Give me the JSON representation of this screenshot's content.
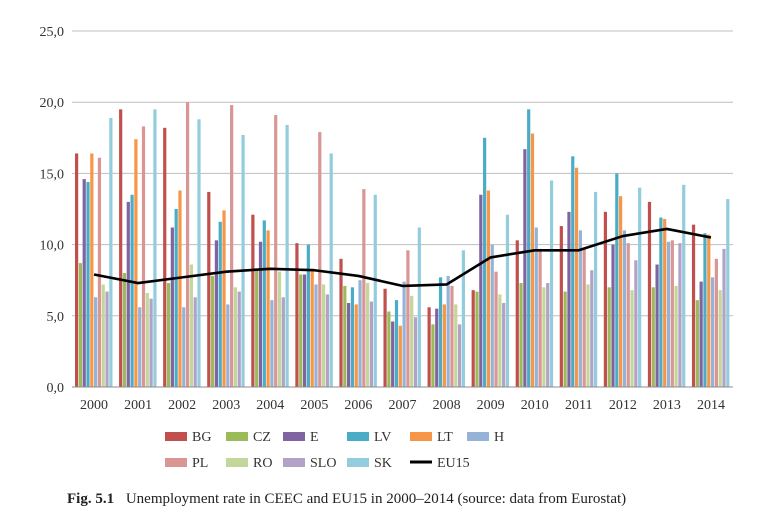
{
  "chart_data": {
    "type": "bar",
    "categories": [
      "2000",
      "2001",
      "2002",
      "2003",
      "2004",
      "2005",
      "2006",
      "2007",
      "2008",
      "2009",
      "2010",
      "2011",
      "2012",
      "2013",
      "2014"
    ],
    "series": [
      {
        "name": "BG",
        "color": "#c0504d",
        "values": [
          16.4,
          19.5,
          18.2,
          13.7,
          12.1,
          10.1,
          9.0,
          6.9,
          5.6,
          6.8,
          10.3,
          11.3,
          12.3,
          13.0,
          11.4
        ]
      },
      {
        "name": "CZ",
        "color": "#9bbb59",
        "values": [
          8.7,
          8.0,
          7.3,
          7.8,
          8.3,
          7.9,
          7.1,
          5.3,
          4.4,
          6.7,
          7.3,
          6.7,
          7.0,
          7.0,
          6.1
        ]
      },
      {
        "name": "E",
        "color": "#8064a2",
        "values": [
          14.6,
          13.0,
          11.2,
          10.3,
          10.2,
          7.9,
          5.9,
          4.6,
          5.5,
          13.5,
          16.7,
          12.3,
          10.0,
          8.6,
          7.4
        ]
      },
      {
        "name": "LV",
        "color": "#4bacc6",
        "values": [
          14.4,
          13.5,
          12.5,
          11.6,
          11.7,
          10.0,
          7.0,
          6.1,
          7.7,
          17.5,
          19.5,
          16.2,
          15.0,
          11.9,
          10.8
        ]
      },
      {
        "name": "LT",
        "color": "#f79646",
        "values": [
          16.4,
          17.4,
          13.8,
          12.4,
          11.0,
          8.3,
          5.8,
          4.3,
          5.8,
          13.8,
          17.8,
          15.4,
          13.4,
          11.8,
          10.7
        ]
      },
      {
        "name": "H",
        "color": "#95b3d7",
        "values": [
          6.3,
          5.6,
          5.6,
          5.8,
          6.1,
          7.2,
          7.5,
          7.4,
          7.8,
          10.0,
          11.2,
          11.0,
          11.0,
          10.2,
          7.7
        ]
      },
      {
        "name": "PL",
        "color": "#d99694",
        "values": [
          16.1,
          18.3,
          20.0,
          19.8,
          19.1,
          17.9,
          13.9,
          9.6,
          7.1,
          8.1,
          9.7,
          9.7,
          10.1,
          10.3,
          9.0
        ]
      },
      {
        "name": "RO",
        "color": "#c3d69b",
        "values": [
          7.2,
          6.6,
          8.6,
          7.0,
          8.1,
          7.2,
          7.3,
          6.4,
          5.8,
          6.5,
          7.0,
          7.2,
          6.8,
          7.1,
          6.8
        ]
      },
      {
        "name": "SLO",
        "color": "#b3a2c7",
        "values": [
          6.7,
          6.2,
          6.3,
          6.7,
          6.3,
          6.5,
          6.0,
          4.9,
          4.4,
          5.9,
          7.3,
          8.2,
          8.9,
          10.1,
          9.7
        ]
      },
      {
        "name": "SK",
        "color": "#93cddd",
        "values": [
          18.9,
          19.5,
          18.8,
          17.7,
          18.4,
          16.4,
          13.5,
          11.2,
          9.6,
          12.1,
          14.5,
          13.7,
          14.0,
          14.2,
          13.2
        ]
      }
    ],
    "line_series": {
      "name": "EU15",
      "color": "#000000",
      "values": [
        7.9,
        7.3,
        7.7,
        8.1,
        8.3,
        8.2,
        7.8,
        7.1,
        7.2,
        9.1,
        9.6,
        9.6,
        10.6,
        11.1,
        10.5
      ]
    },
    "ylim": [
      0,
      25
    ],
    "yticks": [
      "0,0",
      "5,0",
      "10,0",
      "15,0",
      "20,0",
      "25,0"
    ],
    "ytick_values": [
      0,
      5,
      10,
      15,
      20,
      25
    ],
    "grid": true,
    "legend_position": "bottom",
    "title": "",
    "xlabel": "",
    "ylabel": ""
  },
  "caption": {
    "label": "Fig. 5.1",
    "text": "Unemployment rate in CEEC and EU15 in 2000–2014 (source: data from Eurostat)"
  }
}
